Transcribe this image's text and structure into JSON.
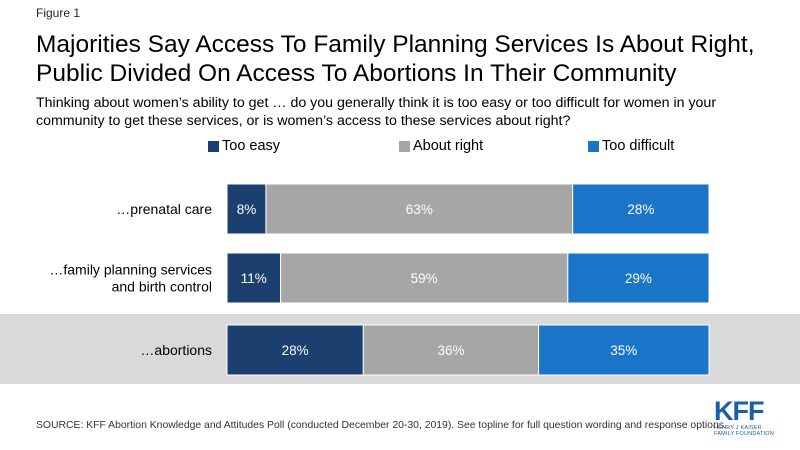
{
  "figure_label": "Figure 1",
  "title": "Majorities Say Access To Family Planning Services Is About Right, Public Divided On Access To Abortions In Their Community",
  "subtitle": "Thinking about women’s ability to get … do you generally think it is too easy or too difficult for women in your community to get these services, or is women’s access to these services about right?",
  "source": "SOURCE: KFF Abortion Knowledge and Attitudes Poll (conducted December 20-30, 2019). See topline for full question wording and response options.",
  "logo": {
    "main": "KFF",
    "line1": "HENRY J KAISER",
    "line2": "FAMILY FOUNDATION"
  },
  "colors": {
    "too_easy": "#1b3f6e",
    "about_right": "#a6a6a6",
    "too_difficult": "#1a75c9",
    "highlight": "#d9d9d9"
  },
  "chart_data": {
    "type": "bar",
    "stacked": true,
    "orientation": "horizontal",
    "categories": [
      [
        "…prenatal care"
      ],
      [
        "…family planning services",
        "and birth control"
      ],
      [
        "…abortions"
      ]
    ],
    "series": [
      {
        "name": "Too easy",
        "values": [
          8,
          11,
          28
        ],
        "labels": [
          "8%",
          "11%",
          "28%"
        ]
      },
      {
        "name": "About right",
        "values": [
          63,
          59,
          36
        ],
        "labels": [
          "63%",
          "59%",
          "36%"
        ]
      },
      {
        "name": "Too difficult",
        "values": [
          28,
          29,
          35
        ],
        "labels": [
          "28%",
          "29%",
          "35%"
        ]
      }
    ],
    "highlighted_category": 2,
    "legend_position": "top"
  }
}
